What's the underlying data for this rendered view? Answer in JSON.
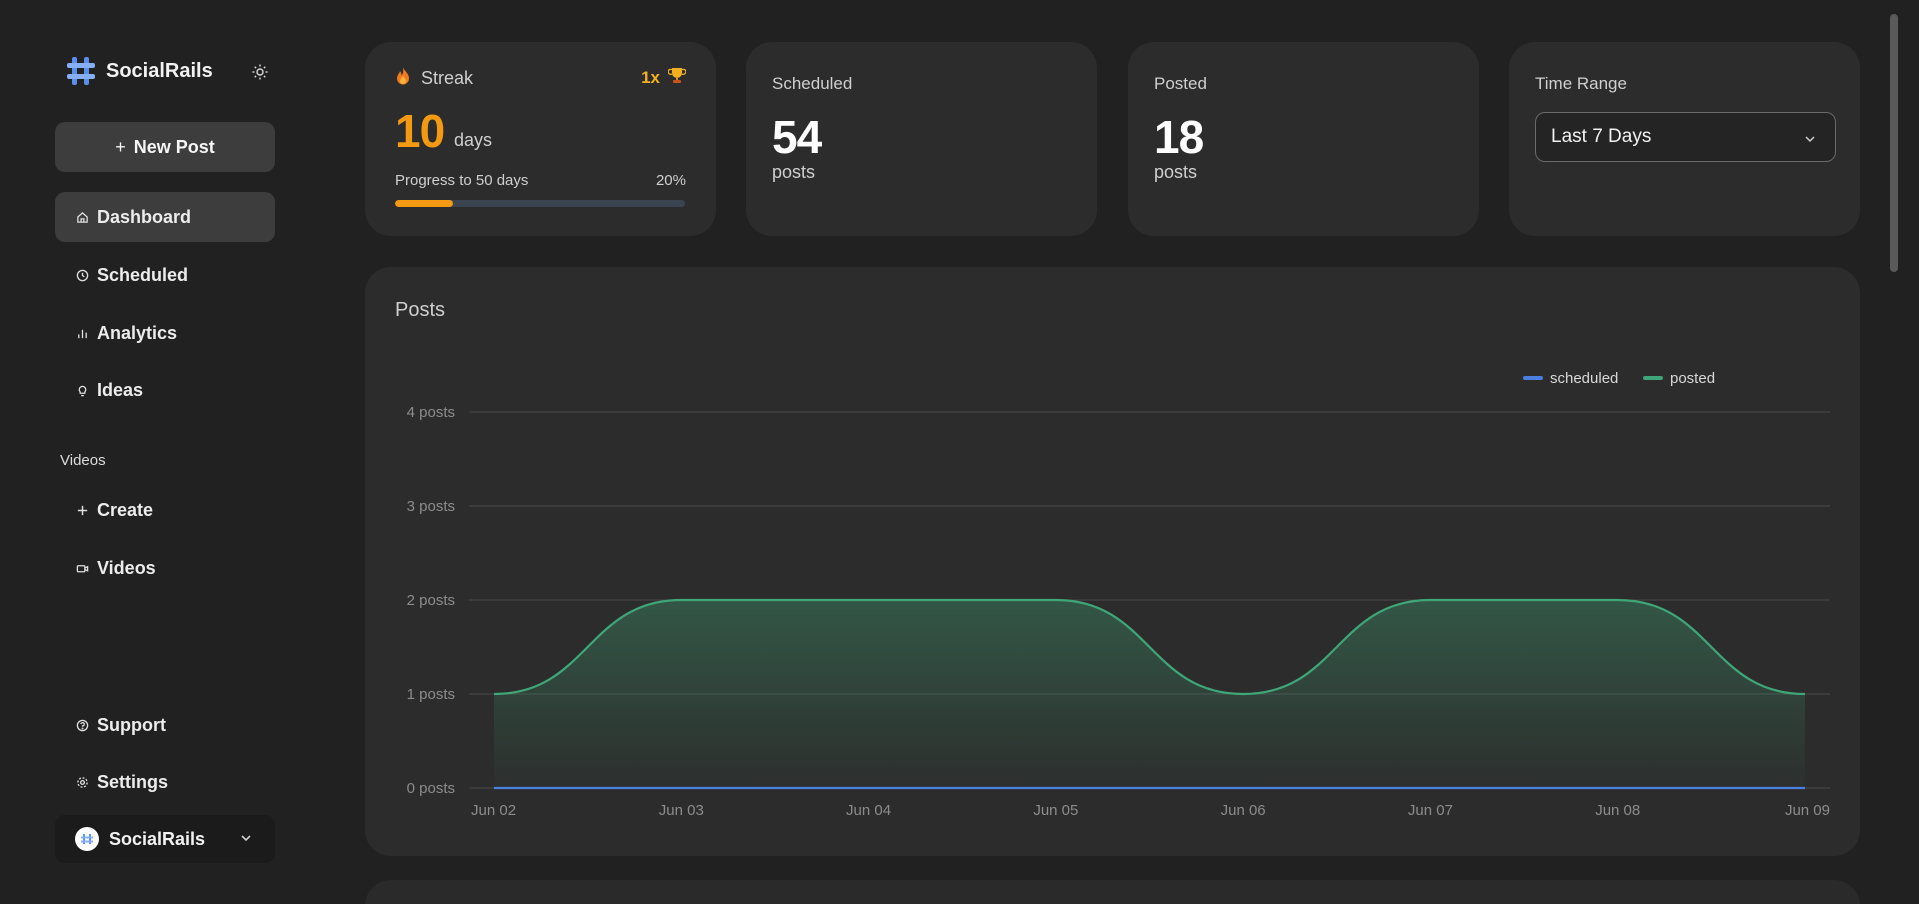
{
  "brand": {
    "name": "SocialRails"
  },
  "sidebar": {
    "new_post_label": "New Post",
    "items": [
      {
        "label": "Dashboard",
        "icon": "home-icon",
        "active": true
      },
      {
        "label": "Scheduled",
        "icon": "clock-icon"
      },
      {
        "label": "Analytics",
        "icon": "bar-chart-icon"
      },
      {
        "label": "Ideas",
        "icon": "lightbulb-icon"
      }
    ],
    "videos_section_label": "Videos",
    "video_items": [
      {
        "label": "Create",
        "icon": "plus-icon"
      },
      {
        "label": "Videos",
        "icon": "video-camera-icon"
      }
    ],
    "bottom_items": [
      {
        "label": "Support",
        "icon": "help-circle-icon"
      },
      {
        "label": "Settings",
        "icon": "gear-icon"
      }
    ],
    "account_name": "SocialRails"
  },
  "streak": {
    "title": "Streak",
    "multiplier": "1x",
    "count": "10",
    "unit": "days",
    "progress_label": "Progress to 50 days",
    "progress_pct": "20%",
    "progress_value": 0.2
  },
  "scheduled": {
    "label": "Scheduled",
    "value": "54",
    "unit": "posts"
  },
  "posted": {
    "label": "Posted",
    "value": "18",
    "unit": "posts"
  },
  "time_range": {
    "label": "Time Range",
    "selected": "Last 7 Days"
  },
  "colors": {
    "accent_orange": "#f39a12",
    "scheduled_blue": "#4a7fe0",
    "posted_green": "#3fa677",
    "background": "#212121",
    "card": "#2c2c2c"
  },
  "chart_data": {
    "type": "area",
    "title": "Posts",
    "x": [
      "Jun 02",
      "Jun 03",
      "Jun 04",
      "Jun 05",
      "Jun 06",
      "Jun 07",
      "Jun 08",
      "Jun 09"
    ],
    "series": [
      {
        "name": "scheduled",
        "values": [
          0,
          0,
          0,
          0,
          0,
          0,
          0,
          0
        ],
        "color": "#4a7fe0"
      },
      {
        "name": "posted",
        "values": [
          1,
          2,
          2,
          2,
          1,
          2,
          2,
          1
        ],
        "color": "#3fa677"
      }
    ],
    "y_ticks": [
      "0 posts",
      "1 posts",
      "2 posts",
      "3 posts",
      "4 posts"
    ],
    "ylim": [
      0,
      4
    ],
    "grid": true,
    "legend": "top-right"
  }
}
